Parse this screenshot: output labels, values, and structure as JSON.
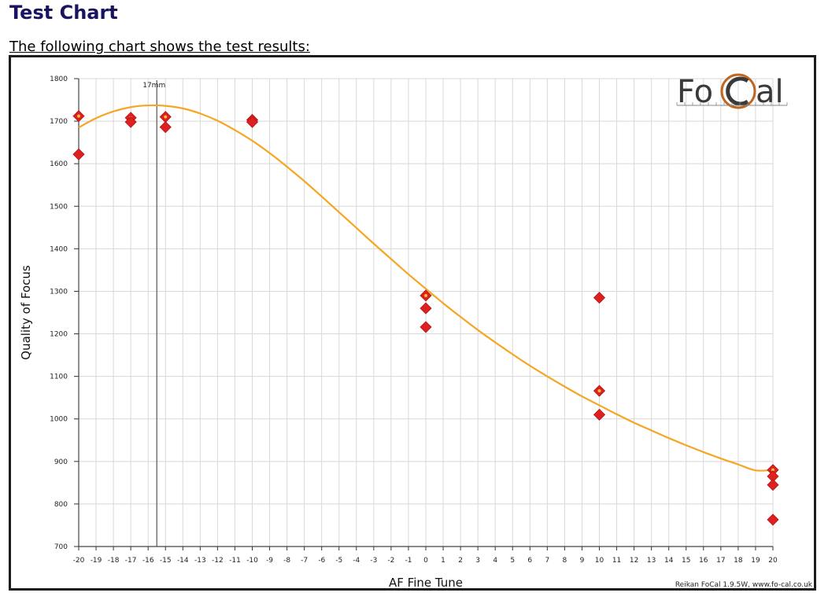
{
  "page": {
    "heading": "Test Chart",
    "intro": "The following chart shows the test results:"
  },
  "colors": {
    "heading": "#1a1360",
    "curve": "#f5a623",
    "point": "#e02020",
    "point_border": "#b01515",
    "grid": "#d8d8d8",
    "logo_dark": "#3a3a3a",
    "logo_ring": "#c0661e"
  },
  "chart_data": {
    "type": "scatter",
    "title": "",
    "xlabel": "AF Fine Tune",
    "ylabel": "Quality of Focus",
    "xlim": [
      -20,
      20
    ],
    "ylim": [
      700,
      1800
    ],
    "x_ticks": [
      -20,
      -19,
      -18,
      -17,
      -16,
      -15,
      -14,
      -13,
      -12,
      -11,
      -10,
      -9,
      -8,
      -7,
      -6,
      -5,
      -4,
      -3,
      -2,
      -1,
      0,
      1,
      2,
      3,
      4,
      5,
      6,
      7,
      8,
      9,
      10,
      11,
      12,
      13,
      14,
      15,
      16,
      17,
      18,
      19,
      20
    ],
    "y_ticks": [
      700,
      800,
      900,
      1000,
      1100,
      1200,
      1300,
      1400,
      1500,
      1600,
      1700,
      1800
    ],
    "grid": true,
    "series": [
      {
        "type": "scatter",
        "points": [
          {
            "x": -20,
            "y": 1712,
            "marked": true
          },
          {
            "x": -20,
            "y": 1622,
            "marked": false
          },
          {
            "x": -17,
            "y": 1708,
            "marked": true
          },
          {
            "x": -17,
            "y": 1698,
            "marked": false
          },
          {
            "x": -15,
            "y": 1710,
            "marked": true
          },
          {
            "x": -15,
            "y": 1686,
            "marked": false
          },
          {
            "x": -10,
            "y": 1703,
            "marked": true
          },
          {
            "x": -10,
            "y": 1698,
            "marked": false
          },
          {
            "x": 0,
            "y": 1290,
            "marked": true
          },
          {
            "x": 0,
            "y": 1260,
            "marked": false
          },
          {
            "x": 0,
            "y": 1216,
            "marked": false
          },
          {
            "x": 10,
            "y": 1285,
            "marked": false
          },
          {
            "x": 10,
            "y": 1066,
            "marked": true
          },
          {
            "x": 10,
            "y": 1010,
            "marked": false
          },
          {
            "x": 20,
            "y": 880,
            "marked": true
          },
          {
            "x": 20,
            "y": 865,
            "marked": false
          },
          {
            "x": 20,
            "y": 845,
            "marked": false
          },
          {
            "x": 20,
            "y": 763,
            "marked": false
          }
        ]
      },
      {
        "type": "line",
        "points": [
          {
            "x": -20,
            "y": 1685
          },
          {
            "x": -19,
            "y": 1707
          },
          {
            "x": -18,
            "y": 1723
          },
          {
            "x": -17,
            "y": 1733
          },
          {
            "x": -16,
            "y": 1737
          },
          {
            "x": -15,
            "y": 1736
          },
          {
            "x": -14,
            "y": 1730
          },
          {
            "x": -13,
            "y": 1718
          },
          {
            "x": -12,
            "y": 1701
          },
          {
            "x": -11,
            "y": 1679
          },
          {
            "x": -10,
            "y": 1654
          },
          {
            "x": -9,
            "y": 1625
          },
          {
            "x": -8,
            "y": 1593
          },
          {
            "x": -7,
            "y": 1559
          },
          {
            "x": -6,
            "y": 1523
          },
          {
            "x": -5,
            "y": 1486
          },
          {
            "x": -4,
            "y": 1449
          },
          {
            "x": -3,
            "y": 1412
          },
          {
            "x": -2,
            "y": 1376
          },
          {
            "x": -1,
            "y": 1340
          },
          {
            "x": 0,
            "y": 1306
          },
          {
            "x": 1,
            "y": 1272
          },
          {
            "x": 2,
            "y": 1240
          },
          {
            "x": 3,
            "y": 1209
          },
          {
            "x": 4,
            "y": 1180
          },
          {
            "x": 5,
            "y": 1152
          },
          {
            "x": 6,
            "y": 1125
          },
          {
            "x": 7,
            "y": 1100
          },
          {
            "x": 8,
            "y": 1076
          },
          {
            "x": 9,
            "y": 1053
          },
          {
            "x": 10,
            "y": 1032
          },
          {
            "x": 11,
            "y": 1011
          },
          {
            "x": 12,
            "y": 991
          },
          {
            "x": 13,
            "y": 973
          },
          {
            "x": 14,
            "y": 955
          },
          {
            "x": 15,
            "y": 938
          },
          {
            "x": 16,
            "y": 922
          },
          {
            "x": 17,
            "y": 907
          },
          {
            "x": 18,
            "y": 893
          },
          {
            "x": 19,
            "y": 879
          },
          {
            "x": 20,
            "y": 880
          }
        ]
      }
    ],
    "marker": {
      "x": -15.5,
      "label": "17mm"
    },
    "logo": {
      "left": "Fo",
      "right": "al"
    },
    "footer": "Reikan FoCal 1.9.5W, www.fo-cal.co.uk"
  }
}
